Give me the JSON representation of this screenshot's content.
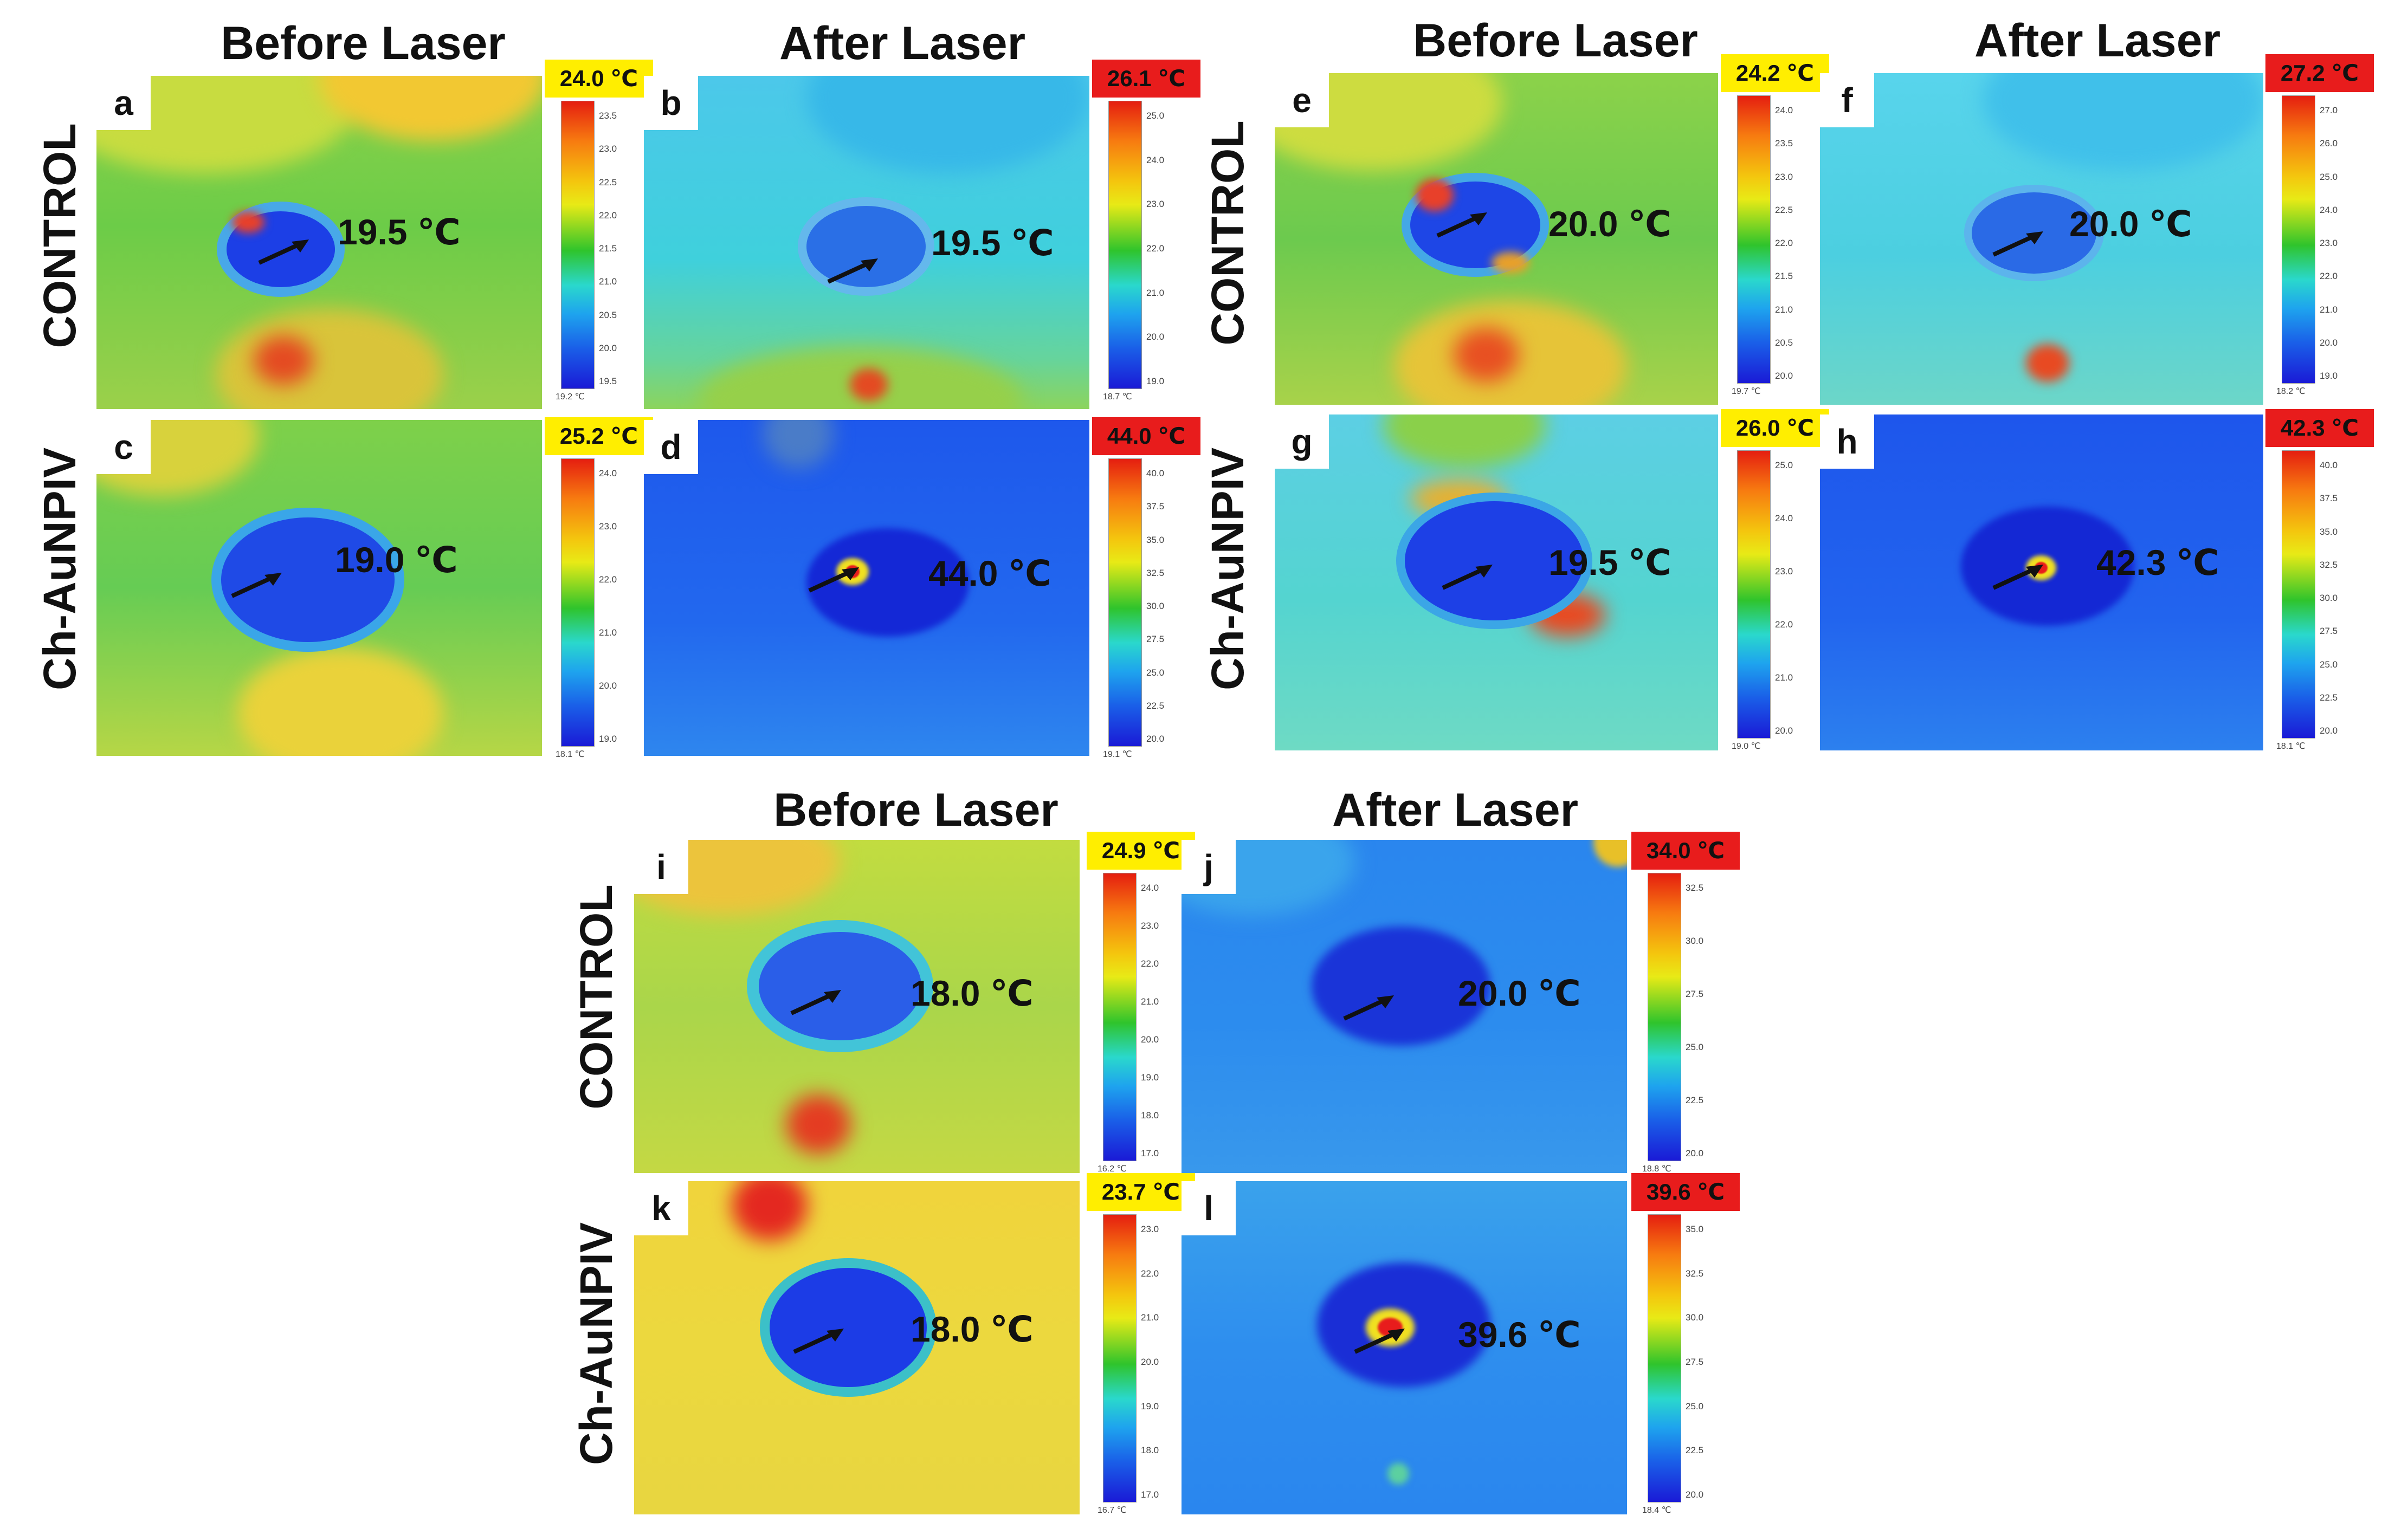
{
  "headings": {
    "before": "Before Laser",
    "after": "After Laser"
  },
  "row_labels": {
    "control": "CONTROL",
    "chaunpiv": "Ch-AuNPIV"
  },
  "panels": [
    {
      "letter": "a",
      "temp": "19.5 ℃",
      "max": "24.0 ℃",
      "max_color": "#ffee00",
      "min": "19.2 ℃",
      "ticks": [
        "23.5",
        "23.0",
        "22.5",
        "22.0",
        "21.5",
        "21.0",
        "20.5",
        "20.0",
        "19.5"
      ]
    },
    {
      "letter": "b",
      "temp": "19.5 ℃",
      "max": "26.1 ℃",
      "max_color": "#e81c1c",
      "min": "18.7 ℃",
      "ticks": [
        "25.0",
        "24.0",
        "23.0",
        "22.0",
        "21.0",
        "20.0",
        "19.0"
      ]
    },
    {
      "letter": "c",
      "temp": "19.0 ℃",
      "max": "25.2 ℃",
      "max_color": "#ffee00",
      "min": "18.1 ℃",
      "ticks": [
        "24.0",
        "23.0",
        "22.0",
        "21.0",
        "20.0",
        "19.0"
      ]
    },
    {
      "letter": "d",
      "temp": "44.0 ℃",
      "max": "44.0 ℃",
      "max_color": "#e81c1c",
      "min": "19.1 ℃",
      "ticks": [
        "40.0",
        "37.5",
        "35.0",
        "32.5",
        "30.0",
        "27.5",
        "25.0",
        "22.5",
        "20.0"
      ]
    },
    {
      "letter": "e",
      "temp": "20.0 ℃",
      "max": "24.2 ℃",
      "max_color": "#ffee00",
      "min": "19.7 ℃",
      "ticks": [
        "24.0",
        "23.5",
        "23.0",
        "22.5",
        "22.0",
        "21.5",
        "21.0",
        "20.5",
        "20.0"
      ]
    },
    {
      "letter": "f",
      "temp": "20.0 ℃",
      "max": "27.2 ℃",
      "max_color": "#e81c1c",
      "min": "18.2 ℃",
      "ticks": [
        "27.0",
        "26.0",
        "25.0",
        "24.0",
        "23.0",
        "22.0",
        "21.0",
        "20.0",
        "19.0"
      ]
    },
    {
      "letter": "g",
      "temp": "19.5 ℃",
      "max": "26.0 ℃",
      "max_color": "#ffee00",
      "min": "19.0 ℃",
      "ticks": [
        "25.0",
        "24.0",
        "23.0",
        "22.0",
        "21.0",
        "20.0"
      ]
    },
    {
      "letter": "h",
      "temp": "42.3 ℃",
      "max": "42.3 ℃",
      "max_color": "#e81c1c",
      "min": "18.1 ℃",
      "ticks": [
        "40.0",
        "37.5",
        "35.0",
        "32.5",
        "30.0",
        "27.5",
        "25.0",
        "22.5",
        "20.0"
      ]
    },
    {
      "letter": "i",
      "temp": "18.0 ℃",
      "max": "24.9 ℃",
      "max_color": "#ffee00",
      "min": "16.2 ℃",
      "ticks": [
        "24.0",
        "23.0",
        "22.0",
        "21.0",
        "20.0",
        "19.0",
        "18.0",
        "17.0"
      ]
    },
    {
      "letter": "j",
      "temp": "20.0 ℃",
      "max": "34.0 ℃",
      "max_color": "#e81c1c",
      "min": "18.8 ℃",
      "ticks": [
        "32.5",
        "30.0",
        "27.5",
        "25.0",
        "22.5",
        "20.0"
      ]
    },
    {
      "letter": "k",
      "temp": "18.0 ℃",
      "max": "23.7 ℃",
      "max_color": "#ffee00",
      "min": "16.7 ℃",
      "ticks": [
        "23.0",
        "22.0",
        "21.0",
        "20.0",
        "19.0",
        "18.0",
        "17.0"
      ]
    },
    {
      "letter": "l",
      "temp": "39.6 ℃",
      "max": "39.6 ℃",
      "max_color": "#e81c1c",
      "min": "18.4 ℃",
      "ticks": [
        "35.0",
        "32.5",
        "30.0",
        "27.5",
        "25.0",
        "22.5",
        "20.0"
      ]
    }
  ]
}
